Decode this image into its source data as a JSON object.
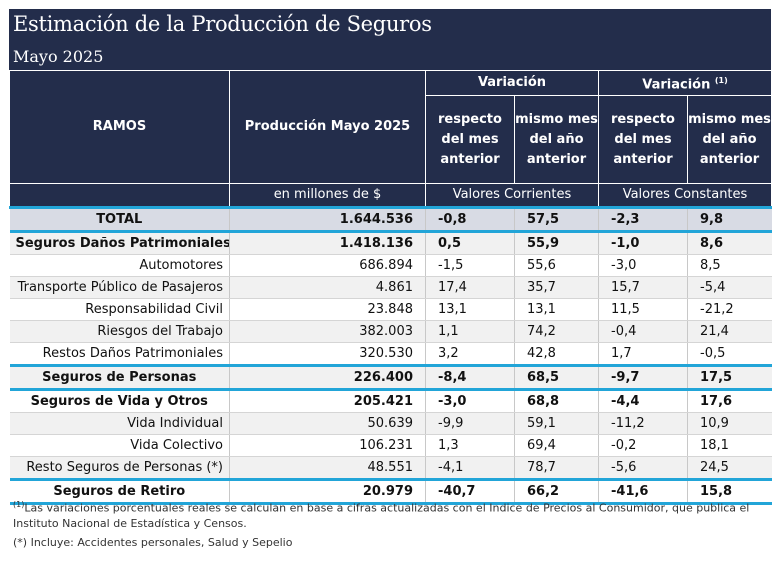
{
  "title": "Estimación de la Producción de Seguros",
  "subtitle": "Mayo 2025",
  "header": {
    "ramos": "RAMOS",
    "produccion": "Producción Mayo 2025",
    "unidad": "en millones de $",
    "variacion": "Variación",
    "variacion2": "Variación",
    "variacion2_sup": "(1)",
    "col_mes": "respecto del mes anterior",
    "col_anio": "mismo mes del año anterior",
    "col_mes2": "respecto del mes anterior",
    "col_anio2": "mismo mes del año anterior",
    "valores_corrientes": "Valores Corrientes",
    "valores_constantes": "Valores Constantes"
  },
  "rows": [
    {
      "ramo": "TOTAL",
      "produccion": "1.644.536",
      "v_mes": "-0,8",
      "v_anio": "57,5",
      "c_mes": "-2,3",
      "c_anio": "9,8"
    },
    {
      "ramo": "Seguros Daños Patrimoniales",
      "produccion": "1.418.136",
      "v_mes": "0,5",
      "v_anio": "55,9",
      "c_mes": "-1,0",
      "c_anio": "8,6"
    },
    {
      "ramo": "Automotores",
      "produccion": "686.894",
      "v_mes": "-1,5",
      "v_anio": "55,6",
      "c_mes": "-3,0",
      "c_anio": "8,5"
    },
    {
      "ramo": "Transporte Público de Pasajeros",
      "produccion": "4.861",
      "v_mes": "17,4",
      "v_anio": "35,7",
      "c_mes": "15,7",
      "c_anio": "-5,4"
    },
    {
      "ramo": "Responsabilidad Civil",
      "produccion": "23.848",
      "v_mes": "13,1",
      "v_anio": "13,1",
      "c_mes": "11,5",
      "c_anio": "-21,2"
    },
    {
      "ramo": "Riesgos del Trabajo",
      "produccion": "382.003",
      "v_mes": "1,1",
      "v_anio": "74,2",
      "c_mes": "-0,4",
      "c_anio": "21,4"
    },
    {
      "ramo": "Restos Daños Patrimoniales",
      "produccion": "320.530",
      "v_mes": "3,2",
      "v_anio": "42,8",
      "c_mes": "1,7",
      "c_anio": "-0,5"
    },
    {
      "ramo": "Seguros de Personas",
      "produccion": "226.400",
      "v_mes": "-8,4",
      "v_anio": "68,5",
      "c_mes": "-9,7",
      "c_anio": "17,5"
    },
    {
      "ramo": "Seguros de Vida y Otros",
      "produccion": "205.421",
      "v_mes": "-3,0",
      "v_anio": "68,8",
      "c_mes": "-4,4",
      "c_anio": "17,6"
    },
    {
      "ramo": "Vida Individual",
      "produccion": "50.639",
      "v_mes": "-9,9",
      "v_anio": "59,1",
      "c_mes": "-11,2",
      "c_anio": "10,9"
    },
    {
      "ramo": "Vida Colectivo",
      "produccion": "106.231",
      "v_mes": "1,3",
      "v_anio": "69,4",
      "c_mes": "-0,2",
      "c_anio": "18,1"
    },
    {
      "ramo": "Resto Seguros de Personas (*)",
      "produccion": "48.551",
      "v_mes": "-4,1",
      "v_anio": "78,7",
      "c_mes": "-5,6",
      "c_anio": "24,5"
    },
    {
      "ramo": "Seguros de Retiro",
      "produccion": "20.979",
      "v_mes": "-40,7",
      "v_anio": "66,2",
      "c_mes": "-41,6",
      "c_anio": "15,8"
    }
  ],
  "notes": {
    "note1_sup": "(1)",
    "note1": "Las variaciones porcentuales reales se calculan en base a cifras actualizadas con  el Indice de Precios al Consumidor, que publica el Instituto Nacional de Estadística y  Censos.",
    "note2": "(*) Incluye: Accidentes personales, Salud y Sepelio"
  }
}
